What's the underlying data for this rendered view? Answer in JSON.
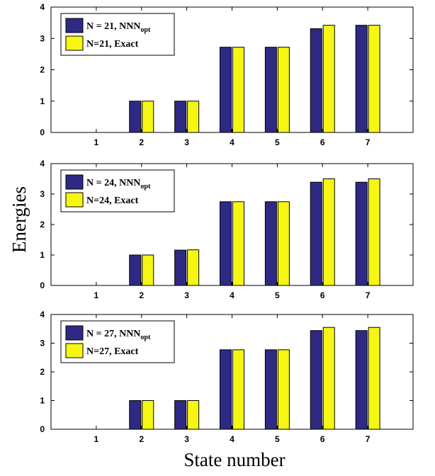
{
  "ylabel": "Energies",
  "xlabel": "State number",
  "colors": {
    "series1": "#2e2a83",
    "series2": "#f6f613",
    "edge": "#000000"
  },
  "chart_data": [
    {
      "type": "bar",
      "categories": [
        "1",
        "2",
        "3",
        "4",
        "5",
        "6",
        "7"
      ],
      "ylim": [
        0,
        4
      ],
      "yticks": [
        "0",
        "1",
        "2",
        "3",
        "4"
      ],
      "legend_position": "top-left",
      "series": [
        {
          "name": "N = 21, NNN",
          "name_sub": "opt",
          "values": [
            0,
            1.0,
            1.0,
            2.72,
            2.72,
            3.31,
            3.42
          ]
        },
        {
          "name": "N=21, Exact",
          "values": [
            0,
            1.0,
            1.0,
            2.72,
            2.72,
            3.42,
            3.42
          ]
        }
      ]
    },
    {
      "type": "bar",
      "categories": [
        "1",
        "2",
        "3",
        "4",
        "5",
        "6",
        "7"
      ],
      "ylim": [
        0,
        4
      ],
      "yticks": [
        "0",
        "1",
        "2",
        "3",
        "4"
      ],
      "legend_position": "top-left",
      "series": [
        {
          "name": "N = 24, NNN",
          "name_sub": "opt",
          "values": [
            0,
            1.0,
            1.16,
            2.75,
            2.75,
            3.39,
            3.39
          ]
        },
        {
          "name": "N=24, Exact",
          "values": [
            0,
            1.0,
            1.17,
            2.75,
            2.75,
            3.5,
            3.5
          ]
        }
      ]
    },
    {
      "type": "bar",
      "categories": [
        "1",
        "2",
        "3",
        "4",
        "5",
        "6",
        "7"
      ],
      "ylim": [
        0,
        4
      ],
      "yticks": [
        "0",
        "1",
        "2",
        "3",
        "4"
      ],
      "legend_position": "top-left",
      "series": [
        {
          "name": "N = 27, NNN",
          "name_sub": "opt",
          "values": [
            0,
            1.0,
            1.0,
            2.77,
            2.77,
            3.44,
            3.44
          ]
        },
        {
          "name": "N=27, Exact",
          "values": [
            0,
            1.0,
            1.0,
            2.77,
            2.77,
            3.55,
            3.55
          ]
        }
      ]
    }
  ]
}
